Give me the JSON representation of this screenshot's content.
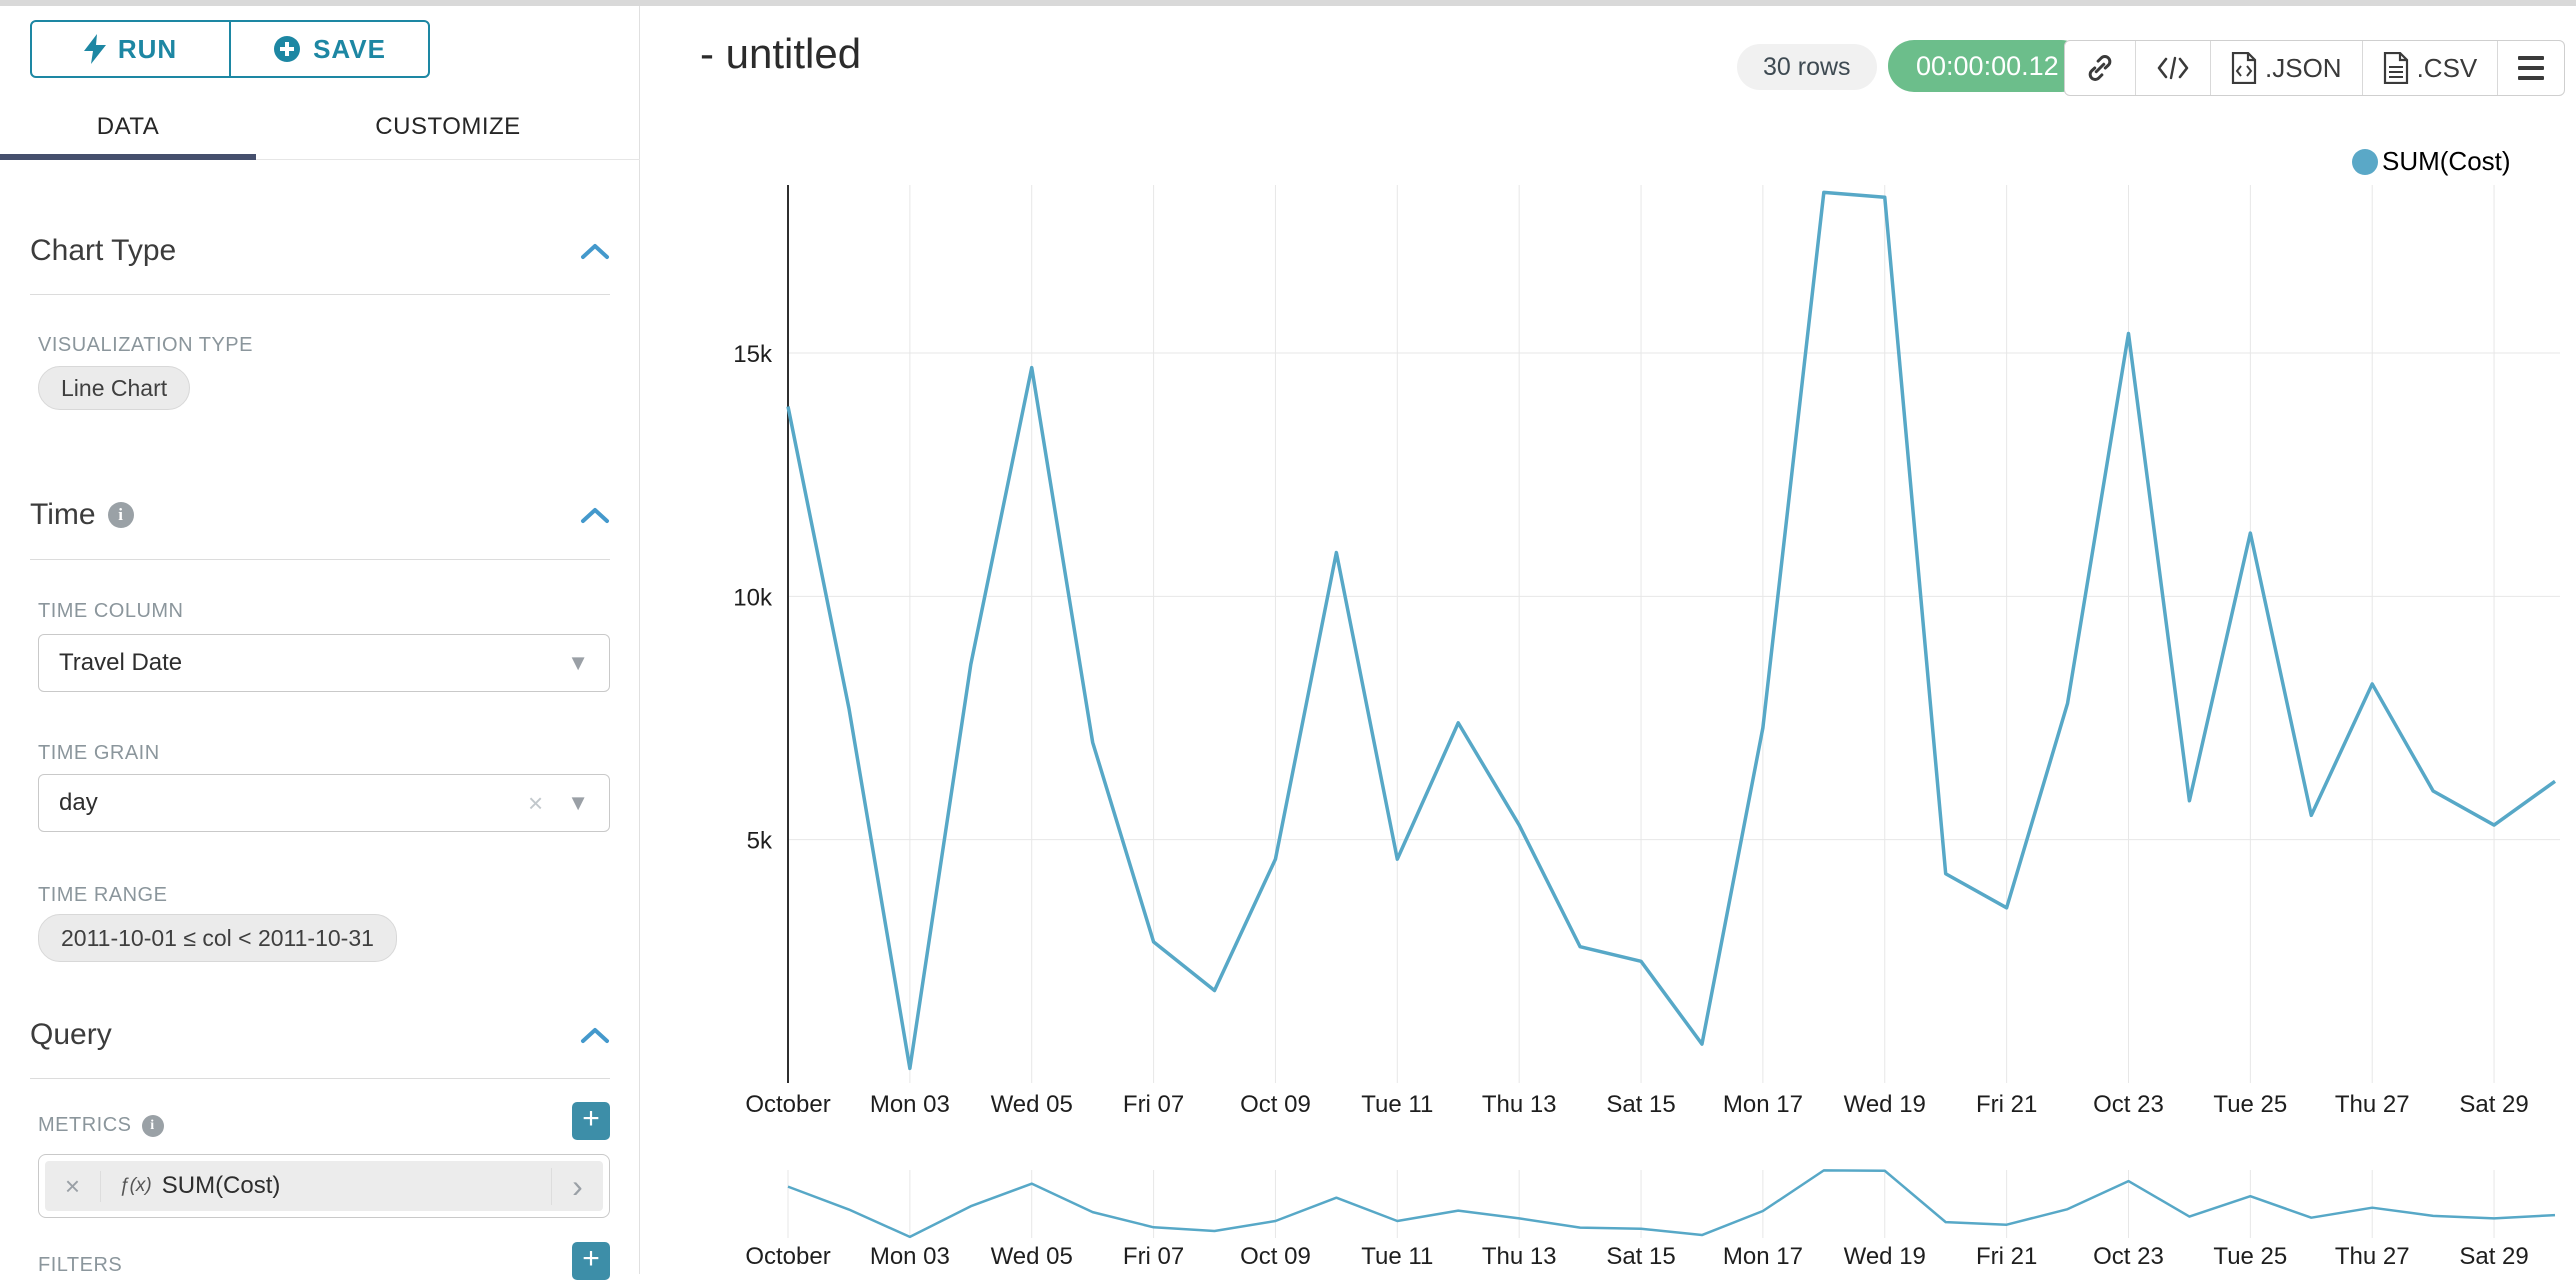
{
  "sidebar": {
    "run_button": {
      "label": "RUN"
    },
    "save_button": {
      "label": "SAVE"
    },
    "tabs": [
      {
        "label": "DATA",
        "active": true
      },
      {
        "label": "CUSTOMIZE",
        "active": false
      }
    ],
    "chart_type_section": {
      "title": "Chart Type",
      "visualization_type_label": "VISUALIZATION TYPE",
      "visualization_type_value": "Line Chart"
    },
    "time_section": {
      "title": "Time",
      "time_column_label": "TIME COLUMN",
      "time_column_value": "Travel Date",
      "time_grain_label": "TIME GRAIN",
      "time_grain_value": "day",
      "time_range_label": "TIME RANGE",
      "time_range_value": "2011-10-01 ≤ col < 2011-10-31"
    },
    "query_section": {
      "title": "Query",
      "metrics_label": "METRICS",
      "metric_prefix": "ƒ(x)",
      "metric_value": "SUM(Cost)",
      "filters_label": "FILTERS",
      "add_button_label": "+"
    }
  },
  "header": {
    "title": "- untitled",
    "row_count_badge": "30 rows",
    "timer_badge": "00:00:00.12",
    "export_json_label": ".JSON",
    "export_csv_label": ".CSV"
  },
  "legend": {
    "series_label": "SUM(Cost)"
  },
  "colors": {
    "accent_teal": "#1d87a3",
    "plus_button_teal": "#3d8ea8",
    "active_tab_underline": "#454f6d",
    "timer_green": "#6cbe8b",
    "series_line": "#57a8c7",
    "legend_dot": "#5aa8c7",
    "gridline": "#e7e7e7"
  },
  "chart_data": {
    "type": "line",
    "title": "",
    "x": [
      "2011-10-01",
      "2011-10-02",
      "2011-10-03",
      "2011-10-04",
      "2011-10-05",
      "2011-10-06",
      "2011-10-07",
      "2011-10-08",
      "2011-10-09",
      "2011-10-10",
      "2011-10-11",
      "2011-10-12",
      "2011-10-13",
      "2011-10-14",
      "2011-10-15",
      "2011-10-16",
      "2011-10-17",
      "2011-10-18",
      "2011-10-19",
      "2011-10-20",
      "2011-10-21",
      "2011-10-22",
      "2011-10-23",
      "2011-10-24",
      "2011-10-25",
      "2011-10-26",
      "2011-10-27",
      "2011-10-28",
      "2011-10-29",
      "2011-10-30"
    ],
    "series": [
      {
        "name": "SUM(Cost)",
        "color": "#57a8c7",
        "values": [
          13900,
          7700,
          300,
          8600,
          14700,
          7000,
          2900,
          1900,
          4600,
          10900,
          4600,
          7400,
          5300,
          2800,
          2500,
          800,
          7300,
          18300,
          18200,
          4300,
          3600,
          7800,
          15400,
          5800,
          11300,
          5500,
          8200,
          6000,
          5300,
          6200
        ]
      }
    ],
    "x_tick_labels": [
      "October",
      "Mon 03",
      "Wed 05",
      "Fri 07",
      "Oct 09",
      "Tue 11",
      "Thu 13",
      "Sat 15",
      "Mon 17",
      "Wed 19",
      "Fri 21",
      "Oct 23",
      "Tue 25",
      "Thu 27",
      "Sat 29"
    ],
    "x_tick_every_n_points": 2,
    "y_ticks": [
      5000,
      10000,
      15000
    ],
    "y_tick_labels": [
      "5k",
      "10k",
      "15k"
    ],
    "ylim": [
      0,
      18400
    ],
    "grid": true,
    "legend_position": "top-right",
    "has_context_brush_chart": true,
    "xlabel": "",
    "ylabel": ""
  }
}
